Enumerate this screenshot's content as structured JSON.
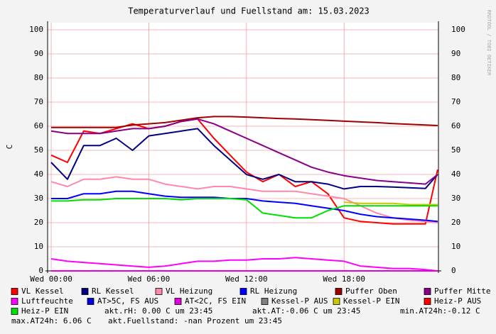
{
  "chart_data": {
    "type": "line",
    "title": "Temperaturverlauf und Fuellstand am: 15.03.2023",
    "y_label": "C",
    "watermark": "RRDTOOL / TOBI OETIKER",
    "x": [
      0,
      1,
      2,
      3,
      4,
      5,
      6,
      7,
      8,
      9,
      10,
      11,
      12,
      13,
      14,
      15,
      16,
      17,
      18,
      19,
      20,
      21,
      22,
      23,
      23.75
    ],
    "xlim": [
      -0.22,
      23.8
    ],
    "xticks": [
      {
        "value": 0,
        "label": "Wed 00:00"
      },
      {
        "value": 6,
        "label": "Wed 06:00"
      },
      {
        "value": 12,
        "label": "Wed 12:00"
      },
      {
        "value": 18,
        "label": "Wed 18:00"
      }
    ],
    "ylim": [
      0,
      100
    ],
    "yticks": [
      0,
      10,
      20,
      30,
      40,
      50,
      60,
      70,
      80,
      90,
      100
    ],
    "grid": true,
    "series": [
      {
        "name": "VL Kessel",
        "color": "#ff0000",
        "values": [
          48,
          45,
          58,
          57,
          59,
          61,
          59,
          60,
          62,
          63,
          55,
          48,
          41,
          37,
          40,
          35,
          37,
          32,
          22,
          20.5,
          20,
          19.5,
          19.5,
          19.5,
          42
        ]
      },
      {
        "name": "RL Kessel",
        "color": "#000080",
        "values": [
          45,
          38,
          52,
          52,
          55,
          50,
          56,
          57,
          58,
          59,
          52,
          46,
          40,
          38,
          40,
          37,
          37,
          36,
          34,
          35,
          35,
          34.8,
          34.5,
          34.2,
          40
        ]
      },
      {
        "name": "VL Heizung",
        "color": "#ff88a8",
        "values": [
          37,
          35,
          38,
          38,
          39,
          38,
          38,
          36,
          35,
          34,
          35,
          35,
          34,
          33,
          33,
          33,
          32,
          31,
          30,
          27,
          24,
          22,
          21,
          20.5,
          20
        ]
      },
      {
        "name": "RL Heizung",
        "color": "#0000ff",
        "values": [
          30,
          30,
          32,
          32,
          33,
          33,
          32,
          31,
          30.5,
          30.5,
          30.5,
          30,
          30,
          29,
          28.5,
          28,
          27,
          26,
          25,
          23.5,
          22.5,
          22,
          21.5,
          21,
          20.5
        ]
      },
      {
        "name": "Puffer Oben",
        "color": "#a00000",
        "values": [
          59.5,
          59.5,
          59.5,
          59.5,
          59.5,
          60.5,
          61,
          61.5,
          62.5,
          63.5,
          64,
          64,
          63.8,
          63.5,
          63.2,
          63,
          62.7,
          62.4,
          62.1,
          61.8,
          61.5,
          61.1,
          60.8,
          60.5,
          60.3
        ]
      },
      {
        "name": "Puffer Mitte",
        "color": "#880088",
        "values": [
          58,
          57,
          57,
          57,
          58,
          59,
          59,
          60,
          62,
          63,
          61,
          58,
          55,
          52,
          49,
          46,
          43,
          41,
          39.5,
          38.5,
          37.5,
          37,
          36.5,
          36,
          40
        ]
      },
      {
        "name": "Luftfeuchte",
        "color": "#ff00ff",
        "values": [
          5,
          4,
          3.5,
          3,
          2.5,
          2,
          1.5,
          2,
          3,
          4,
          4,
          4.5,
          4.5,
          5,
          5,
          5.5,
          5,
          4.5,
          4,
          2,
          1.5,
          1,
          1,
          0.5,
          0
        ]
      },
      {
        "name": "AT>5C, FS AUS",
        "color": "#0000e0",
        "values": [
          null,
          null,
          null,
          null,
          null,
          null,
          null,
          null,
          null,
          null,
          null,
          null,
          null,
          null,
          null,
          null,
          null,
          null,
          null,
          null,
          null,
          null,
          null,
          null,
          null
        ]
      },
      {
        "name": "AT<2C, FS EIN",
        "color": "#e000e0",
        "values": [
          0,
          0,
          0,
          0,
          0,
          0,
          0,
          0,
          0,
          0,
          0,
          0,
          0,
          0,
          0,
          0,
          0,
          0,
          0,
          0,
          0,
          0,
          0,
          0,
          0
        ]
      },
      {
        "name": "Kessel-P AUS",
        "color": "#808080",
        "values": [
          null,
          null,
          null,
          null,
          null,
          null,
          null,
          null,
          null,
          null,
          null,
          null,
          null,
          null,
          null,
          null,
          null,
          null,
          null,
          null,
          null,
          null,
          null,
          null,
          null
        ]
      },
      {
        "name": "Kessel-P EIN",
        "color": "#c8c800",
        "values": [
          null,
          null,
          null,
          null,
          null,
          null,
          null,
          null,
          null,
          null,
          null,
          null,
          null,
          null,
          null,
          null,
          null,
          null,
          28.5,
          28,
          28,
          28,
          27.5,
          27.5,
          27.5
        ]
      },
      {
        "name": "Heiz-P AUS",
        "color": "#ff0000",
        "values": [
          null,
          null,
          null,
          null,
          null,
          null,
          null,
          null,
          null,
          null,
          null,
          null,
          null,
          null,
          null,
          null,
          null,
          null,
          null,
          null,
          null,
          null,
          null,
          null,
          null
        ]
      },
      {
        "name": "Heiz-P EIN",
        "color": "#00e000",
        "values": [
          29,
          29,
          29.5,
          29.5,
          30,
          30,
          30,
          30,
          29.5,
          30,
          30,
          30,
          29.5,
          24,
          23,
          22,
          22,
          25,
          27,
          27,
          27,
          27,
          27,
          27,
          27
        ]
      }
    ],
    "comments": [
      "akt.rH: 0.00 C um 23:45",
      "akt.AT:-0.06 C um 23:45",
      "min.AT24h:-0.12 C",
      "max.AT24h: 6.06 C",
      "akt.Fuellstand: -nan Prozent um 23:45"
    ]
  }
}
